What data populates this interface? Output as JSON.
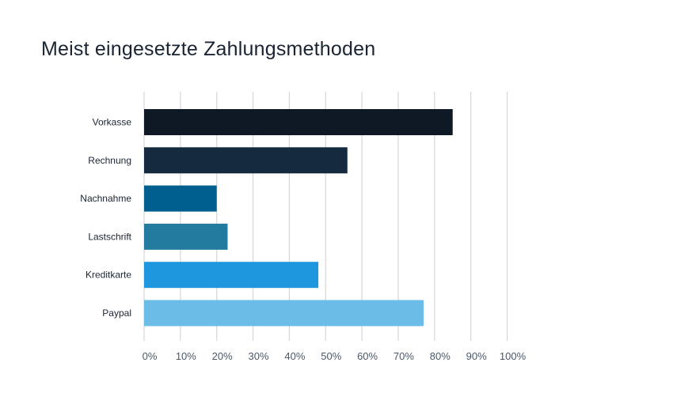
{
  "chart_data": {
    "type": "bar",
    "orientation": "horizontal",
    "title": "Meist eingesetzte Zahlungsmethoden",
    "xlabel": "",
    "ylabel": "",
    "categories": [
      "Vorkasse",
      "Rechnung",
      "Nachnahme",
      "Lastschrift",
      "Kreditkarte",
      "Paypal"
    ],
    "values": [
      85,
      56,
      20,
      23,
      48,
      77
    ],
    "colors": [
      "#0e1925",
      "#15293f",
      "#005f8e",
      "#237b9f",
      "#1e97df",
      "#6cbce8"
    ],
    "xlim": [
      0,
      100
    ],
    "x_ticks": [
      "0%",
      "10%",
      "20%",
      "30%",
      "40%",
      "50%",
      "60%",
      "70%",
      "80%",
      "90%",
      "100%"
    ],
    "grid": true,
    "legend": "none"
  }
}
